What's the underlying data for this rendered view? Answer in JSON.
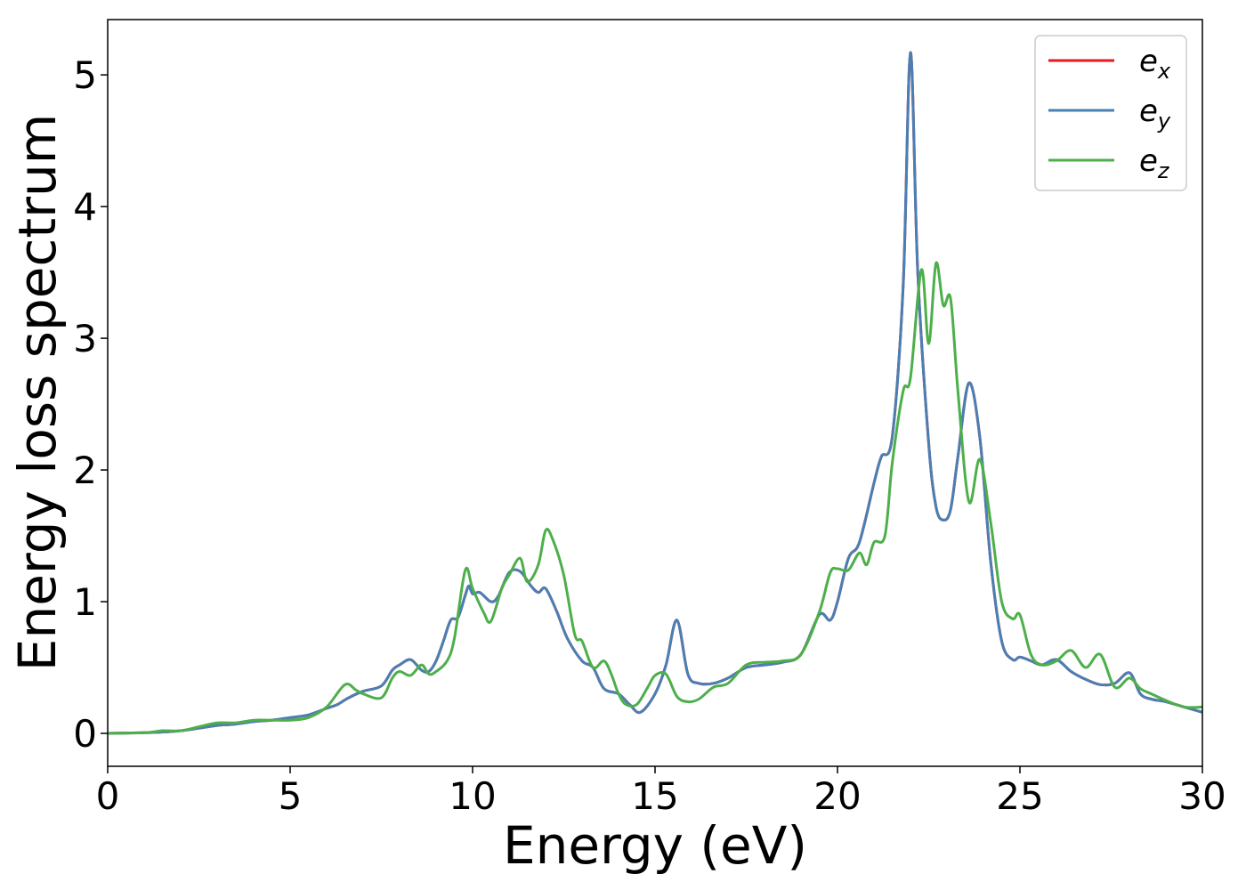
{
  "chart_data": {
    "type": "line",
    "xlabel": "Energy (eV)",
    "ylabel": "Energy loss spectrum",
    "xlim": [
      0,
      30
    ],
    "ylim": [
      -0.25,
      5.42
    ],
    "xticks": [
      0,
      5,
      10,
      15,
      20,
      25,
      30
    ],
    "xtick_labels": [
      "0",
      "5",
      "10",
      "15",
      "20",
      "25",
      "30"
    ],
    "yticks": [
      0,
      1,
      2,
      3,
      4,
      5
    ],
    "ytick_labels": [
      "0",
      "1",
      "2",
      "3",
      "4",
      "5"
    ],
    "grid": false,
    "legend_position": "top-right",
    "series": [
      {
        "name": "e_x",
        "legend_base": "e",
        "legend_sub": "x",
        "color": "#e41a1c",
        "x": [
          0,
          1,
          1.5,
          2,
          2.5,
          3,
          3.5,
          4,
          4.5,
          5,
          5.5,
          6,
          6.3,
          6.6,
          7,
          7.5,
          7.8,
          8,
          8.3,
          8.6,
          8.8,
          9,
          9.2,
          9.4,
          9.6,
          9.8,
          9.9,
          10,
          10.2,
          10.5,
          10.7,
          11,
          11.3,
          11.6,
          11.8,
          12,
          12.3,
          12.6,
          13,
          13.3,
          13.6,
          14,
          14.3,
          14.6,
          15,
          15.3,
          15.6,
          15.9,
          16.2,
          16.6,
          17,
          17.5,
          18,
          18.5,
          19,
          19.5,
          19.8,
          20,
          20.3,
          20.6,
          21,
          21.2,
          21.5,
          21.8,
          22,
          22.2,
          22.5,
          22.7,
          22.9,
          23.1,
          23.3,
          23.6,
          23.9,
          24.2,
          24.5,
          24.8,
          25,
          25.3,
          25.6,
          26,
          26.4,
          26.8,
          27.2,
          27.6,
          28,
          28.3,
          28.6,
          29,
          29.5,
          30
        ],
        "values": [
          0,
          0.005,
          0.01,
          0.02,
          0.04,
          0.06,
          0.07,
          0.09,
          0.1,
          0.12,
          0.14,
          0.19,
          0.22,
          0.27,
          0.32,
          0.36,
          0.48,
          0.52,
          0.56,
          0.48,
          0.47,
          0.55,
          0.7,
          0.86,
          0.88,
          1.05,
          1.12,
          1.06,
          1.07,
          1.0,
          1.04,
          1.22,
          1.23,
          1.12,
          1.07,
          1.1,
          0.93,
          0.72,
          0.55,
          0.5,
          0.34,
          0.3,
          0.22,
          0.16,
          0.3,
          0.52,
          0.86,
          0.45,
          0.38,
          0.38,
          0.42,
          0.5,
          0.52,
          0.54,
          0.6,
          0.9,
          0.86,
          1.0,
          1.33,
          1.45,
          1.9,
          2.1,
          2.25,
          3.4,
          5.17,
          3.5,
          2.2,
          1.72,
          1.62,
          1.7,
          2.1,
          2.66,
          2.25,
          1.3,
          0.7,
          0.56,
          0.58,
          0.55,
          0.52,
          0.56,
          0.47,
          0.41,
          0.37,
          0.38,
          0.46,
          0.3,
          0.26,
          0.24,
          0.2,
          0.16
        ]
      },
      {
        "name": "e_y",
        "legend_base": "e",
        "legend_sub": "y",
        "color": "#4a7fb4",
        "x": [
          0,
          1,
          1.5,
          2,
          2.5,
          3,
          3.5,
          4,
          4.5,
          5,
          5.5,
          6,
          6.3,
          6.6,
          7,
          7.5,
          7.8,
          8,
          8.3,
          8.6,
          8.8,
          9,
          9.2,
          9.4,
          9.6,
          9.8,
          9.9,
          10,
          10.2,
          10.5,
          10.7,
          11,
          11.3,
          11.6,
          11.8,
          12,
          12.3,
          12.6,
          13,
          13.3,
          13.6,
          14,
          14.3,
          14.6,
          15,
          15.3,
          15.6,
          15.9,
          16.2,
          16.6,
          17,
          17.5,
          18,
          18.5,
          19,
          19.5,
          19.8,
          20,
          20.3,
          20.6,
          21,
          21.2,
          21.5,
          21.8,
          22,
          22.2,
          22.5,
          22.7,
          22.9,
          23.1,
          23.3,
          23.6,
          23.9,
          24.2,
          24.5,
          24.8,
          25,
          25.3,
          25.6,
          26,
          26.4,
          26.8,
          27.2,
          27.6,
          28,
          28.3,
          28.6,
          29,
          29.5,
          30
        ],
        "values": [
          0,
          0.005,
          0.01,
          0.02,
          0.04,
          0.06,
          0.07,
          0.09,
          0.1,
          0.12,
          0.14,
          0.19,
          0.22,
          0.27,
          0.32,
          0.36,
          0.48,
          0.52,
          0.56,
          0.48,
          0.47,
          0.55,
          0.7,
          0.86,
          0.88,
          1.05,
          1.12,
          1.06,
          1.07,
          1.0,
          1.04,
          1.22,
          1.23,
          1.12,
          1.07,
          1.1,
          0.93,
          0.72,
          0.55,
          0.5,
          0.34,
          0.3,
          0.22,
          0.16,
          0.3,
          0.52,
          0.86,
          0.45,
          0.38,
          0.38,
          0.42,
          0.5,
          0.52,
          0.54,
          0.6,
          0.9,
          0.86,
          1.0,
          1.33,
          1.45,
          1.9,
          2.1,
          2.25,
          3.4,
          5.17,
          3.5,
          2.2,
          1.72,
          1.62,
          1.7,
          2.1,
          2.66,
          2.25,
          1.3,
          0.7,
          0.56,
          0.58,
          0.55,
          0.52,
          0.56,
          0.47,
          0.41,
          0.37,
          0.38,
          0.46,
          0.3,
          0.26,
          0.24,
          0.2,
          0.16
        ]
      },
      {
        "name": "e_z",
        "legend_base": "e",
        "legend_sub": "z",
        "color": "#4daf4a",
        "x": [
          0,
          1,
          1.5,
          2,
          2.5,
          3,
          3.5,
          4,
          4.5,
          5,
          5.5,
          6,
          6.5,
          6.8,
          7,
          7.5,
          7.8,
          8,
          8.3,
          8.6,
          8.8,
          9,
          9.3,
          9.5,
          9.8,
          10,
          10.3,
          10.5,
          10.8,
          11,
          11.3,
          11.5,
          11.8,
          12,
          12.2,
          12.5,
          12.8,
          13,
          13.3,
          13.6,
          13.8,
          14,
          14.2,
          14.5,
          14.8,
          15,
          15.3,
          15.6,
          15.9,
          16.2,
          16.6,
          17,
          17.5,
          18,
          18.5,
          19,
          19.5,
          19.8,
          20,
          20.3,
          20.6,
          20.8,
          21,
          21.3,
          21.5,
          21.8,
          22,
          22.3,
          22.5,
          22.7,
          22.9,
          23.1,
          23.3,
          23.6,
          23.9,
          24.2,
          24.5,
          24.8,
          25,
          25.3,
          25.6,
          26,
          26.4,
          26.8,
          27.2,
          27.6,
          28,
          28.3,
          28.6,
          29,
          29.5,
          30
        ],
        "values": [
          0,
          0.005,
          0.02,
          0.02,
          0.05,
          0.08,
          0.08,
          0.1,
          0.1,
          0.1,
          0.12,
          0.2,
          0.37,
          0.33,
          0.3,
          0.27,
          0.42,
          0.47,
          0.44,
          0.52,
          0.45,
          0.47,
          0.55,
          0.72,
          1.24,
          1.1,
          0.92,
          0.85,
          1.1,
          1.2,
          1.33,
          1.15,
          1.28,
          1.54,
          1.47,
          1.2,
          0.75,
          0.7,
          0.5,
          0.55,
          0.45,
          0.3,
          0.22,
          0.22,
          0.35,
          0.44,
          0.45,
          0.28,
          0.24,
          0.26,
          0.35,
          0.38,
          0.52,
          0.54,
          0.55,
          0.6,
          0.92,
          1.22,
          1.25,
          1.24,
          1.37,
          1.28,
          1.45,
          1.5,
          2.05,
          2.6,
          2.7,
          3.52,
          2.96,
          3.57,
          3.25,
          3.3,
          2.6,
          1.76,
          2.08,
          1.6,
          1.0,
          0.87,
          0.9,
          0.6,
          0.52,
          0.55,
          0.63,
          0.5,
          0.6,
          0.35,
          0.42,
          0.34,
          0.3,
          0.25,
          0.2,
          0.2
        ]
      }
    ]
  }
}
